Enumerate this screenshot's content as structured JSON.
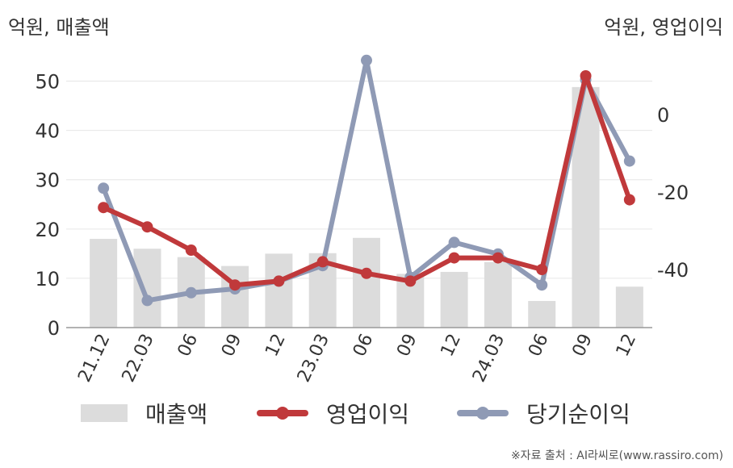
{
  "units": {
    "left": "억원, 매출액",
    "right": "억원, 영업이익"
  },
  "source": "※자료 출처 : AI라씨로(www.rassiro.com)",
  "colors": {
    "bar": "#dcdcdc",
    "operating_income": "#c0393b",
    "net_income": "#8f9ab5",
    "grid": "#e6e6e6",
    "axis": "#999999"
  },
  "chart_data": {
    "type": "bar+line",
    "categories": [
      "21.12",
      "22.03",
      "06",
      "09",
      "12",
      "23.03",
      "06",
      "09",
      "12",
      "24.03",
      "06",
      "09",
      "12"
    ],
    "y_left": {
      "label": "억원, 매출액",
      "lim": [
        0,
        55
      ],
      "ticks": [
        0,
        10,
        20,
        30,
        40,
        50
      ]
    },
    "y_right": {
      "label": "억원, 영업이익",
      "lim": [
        -55,
        15
      ],
      "ticks": [
        0,
        -20,
        -40
      ]
    },
    "grid": true,
    "legend_position": "bottom",
    "series": [
      {
        "name": "매출액",
        "type": "bar",
        "axis": "left",
        "values": [
          18.0,
          16.0,
          14.3,
          12.5,
          15.0,
          15.1,
          18.2,
          10.9,
          11.3,
          13.3,
          5.4,
          48.8,
          8.3
        ]
      },
      {
        "name": "영업이익",
        "type": "line",
        "axis": "right",
        "values": [
          -24,
          -29,
          -35,
          -44,
          -43,
          -38,
          -41,
          -43,
          -37,
          -37,
          -40,
          10,
          -22
        ]
      },
      {
        "name": "당기순이익",
        "type": "line",
        "axis": "right",
        "values": [
          -19,
          -48,
          -46,
          -45,
          -43,
          -39,
          14,
          -42,
          -33,
          -36,
          -44,
          9,
          -12
        ]
      }
    ]
  }
}
